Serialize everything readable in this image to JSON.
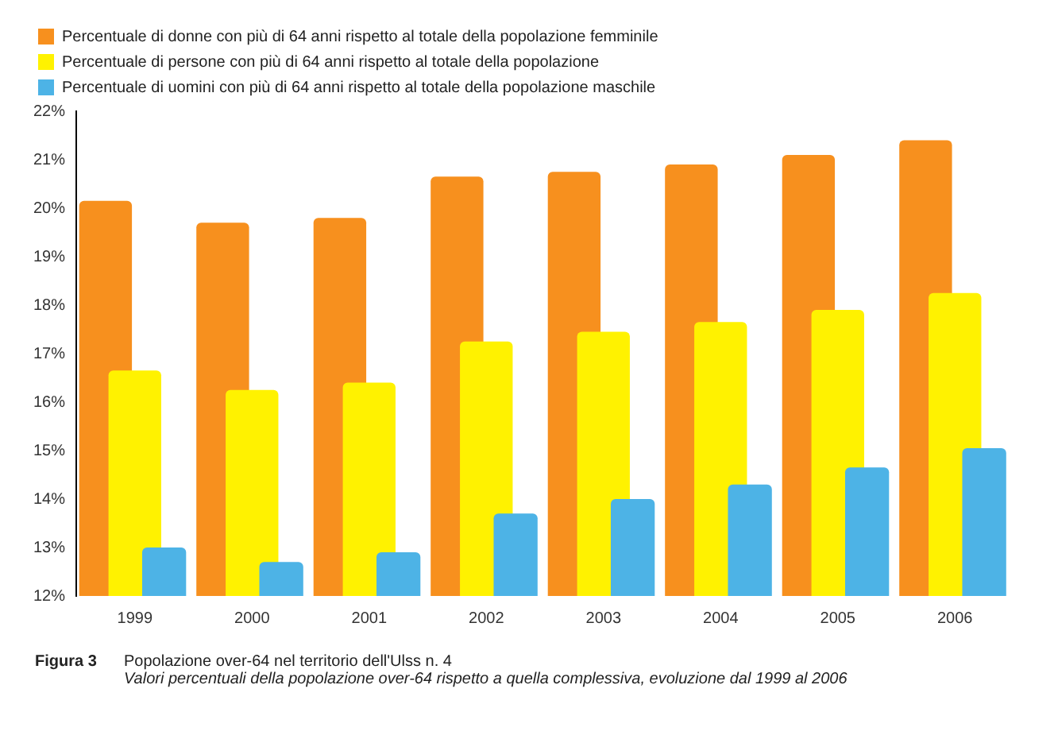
{
  "chart_data": {
    "type": "bar",
    "title": "Popolazione over-64 nel territorio dell'Ulss n. 4",
    "subtitle": "Valori percentuali della popolazione over-64 rispetto a quella complessiva, evoluzione dal 1999 al 2006",
    "annotations": [
      "Figura 3"
    ],
    "categories": [
      "1999",
      "2000",
      "2001",
      "2002",
      "2003",
      "2004",
      "2005",
      "2006"
    ],
    "series": [
      {
        "name": "Percentuale di donne con più di 64 anni rispetto al totale della popolazione femminile",
        "color": "#f7901e",
        "values": [
          20.15,
          19.7,
          19.8,
          20.65,
          20.75,
          20.9,
          21.1,
          21.4
        ]
      },
      {
        "name": "Percentuale di persone con più di 64 anni rispetto al totale della popolazione",
        "color": "#fff200",
        "values": [
          16.65,
          16.25,
          16.4,
          17.25,
          17.45,
          17.65,
          17.9,
          18.25
        ]
      },
      {
        "name": "Percentuale di uomini con più di 64 anni rispetto al totale della popolazione maschile",
        "color": "#4db3e6",
        "values": [
          13.0,
          12.7,
          12.9,
          13.7,
          14.0,
          14.3,
          14.65,
          15.05
        ]
      }
    ],
    "ylim": [
      12,
      22
    ],
    "yticks": [
      {
        "value": 12,
        "label": "12%"
      },
      {
        "value": 13,
        "label": "13%"
      },
      {
        "value": 14,
        "label": "14%"
      },
      {
        "value": 15,
        "label": "15%"
      },
      {
        "value": 16,
        "label": "16%"
      },
      {
        "value": 17,
        "label": "17%"
      },
      {
        "value": 18,
        "label": "18%"
      },
      {
        "value": 19,
        "label": "19%"
      },
      {
        "value": 20,
        "label": "20%"
      },
      {
        "value": 21,
        "label": "21%"
      },
      {
        "value": 22,
        "label": "22%"
      }
    ],
    "grid": false,
    "legend": "top"
  }
}
